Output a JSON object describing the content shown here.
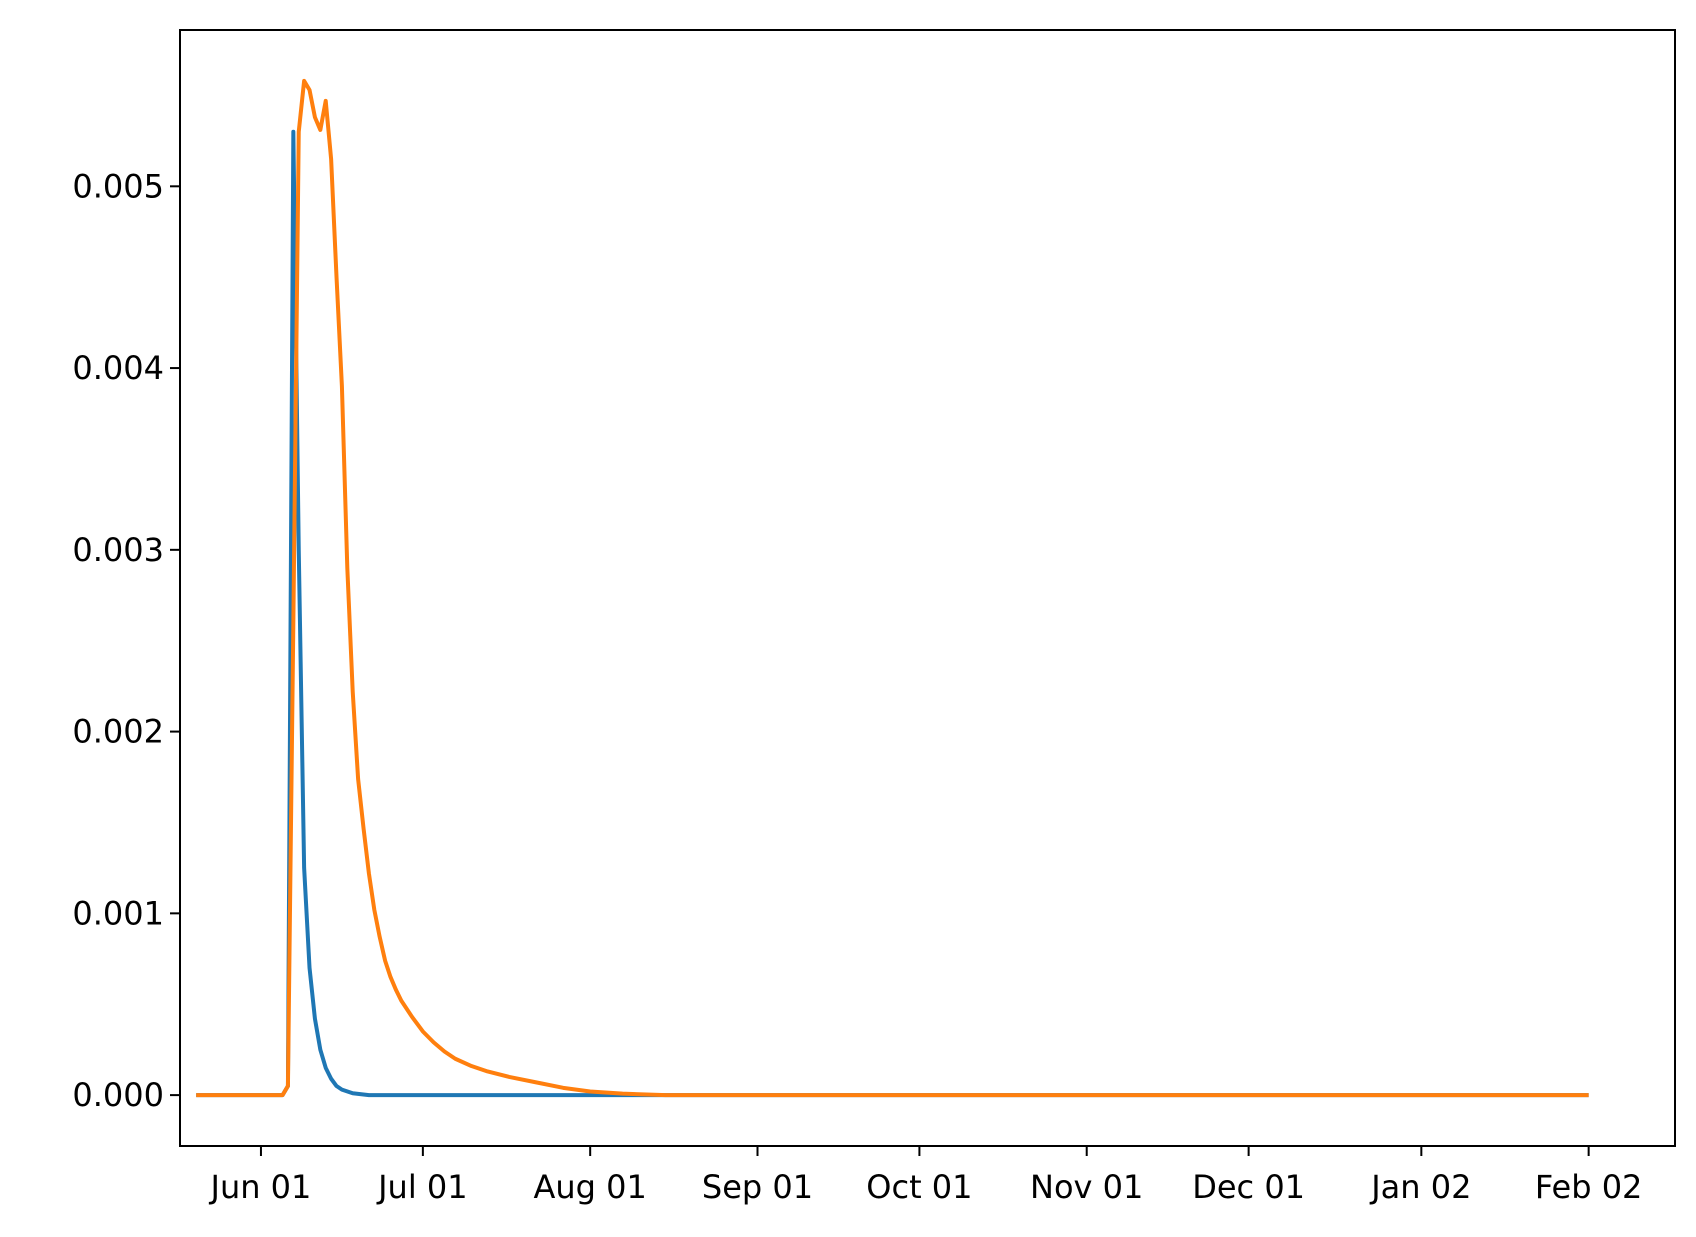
{
  "chart_data": {
    "type": "line",
    "title": "",
    "xlabel": "",
    "ylabel": "",
    "x_axis_type": "date",
    "xlim": [
      "2023-05-17",
      "2024-02-18"
    ],
    "ylim": [
      -0.00028,
      0.00586
    ],
    "grid": false,
    "legend": null,
    "x_ticks": [
      {
        "date": "2023-06-01",
        "label": "Jun 01"
      },
      {
        "date": "2023-07-01",
        "label": "Jul 01"
      },
      {
        "date": "2023-08-01",
        "label": "Aug 01"
      },
      {
        "date": "2023-09-01",
        "label": "Sep 01"
      },
      {
        "date": "2023-10-01",
        "label": "Oct 01"
      },
      {
        "date": "2023-11-01",
        "label": "Nov 01"
      },
      {
        "date": "2023-12-01",
        "label": "Dec 01"
      },
      {
        "date": "2024-01-02",
        "label": "Jan 02"
      },
      {
        "date": "2024-02-02",
        "label": "Feb 02"
      }
    ],
    "y_ticks": [
      {
        "value": 0.0,
        "label": "0.000"
      },
      {
        "value": 0.001,
        "label": "0.001"
      },
      {
        "value": 0.002,
        "label": "0.002"
      },
      {
        "value": 0.003,
        "label": "0.003"
      },
      {
        "value": 0.004,
        "label": "0.004"
      },
      {
        "value": 0.005,
        "label": "0.005"
      }
    ],
    "series": [
      {
        "color": "#1f77b4",
        "points": [
          [
            "2023-05-20",
            0.0
          ],
          [
            "2023-06-05",
            0.0
          ],
          [
            "2023-06-06",
            5e-05
          ],
          [
            "2023-06-07",
            0.0053
          ],
          [
            "2023-06-08",
            0.003
          ],
          [
            "2023-06-09",
            0.00125
          ],
          [
            "2023-06-10",
            0.0007
          ],
          [
            "2023-06-11",
            0.00042
          ],
          [
            "2023-06-12",
            0.00025
          ],
          [
            "2023-06-13",
            0.00015
          ],
          [
            "2023-06-14",
            9e-05
          ],
          [
            "2023-06-15",
            5e-05
          ],
          [
            "2023-06-16",
            3e-05
          ],
          [
            "2023-06-18",
            1e-05
          ],
          [
            "2023-06-21",
            0.0
          ],
          [
            "2024-02-02",
            0.0
          ]
        ]
      },
      {
        "color": "#ff7f0e",
        "points": [
          [
            "2023-05-20",
            0.0
          ],
          [
            "2023-06-05",
            0.0
          ],
          [
            "2023-06-06",
            5e-05
          ],
          [
            "2023-06-07",
            0.0026
          ],
          [
            "2023-06-08",
            0.0053
          ],
          [
            "2023-06-09",
            0.00558
          ],
          [
            "2023-06-10",
            0.00553
          ],
          [
            "2023-06-11",
            0.00538
          ],
          [
            "2023-06-12",
            0.00531
          ],
          [
            "2023-06-13",
            0.00547
          ],
          [
            "2023-06-14",
            0.00515
          ],
          [
            "2023-06-15",
            0.0045
          ],
          [
            "2023-06-16",
            0.0039
          ],
          [
            "2023-06-17",
            0.0029
          ],
          [
            "2023-06-18",
            0.00222
          ],
          [
            "2023-06-19",
            0.00174
          ],
          [
            "2023-06-20",
            0.00147
          ],
          [
            "2023-06-21",
            0.00122
          ],
          [
            "2023-06-22",
            0.00102
          ],
          [
            "2023-06-23",
            0.00087
          ],
          [
            "2023-06-24",
            0.00074
          ],
          [
            "2023-06-25",
            0.00065
          ],
          [
            "2023-06-26",
            0.00058
          ],
          [
            "2023-06-27",
            0.00052
          ],
          [
            "2023-06-29",
            0.00043
          ],
          [
            "2023-07-01",
            0.00035
          ],
          [
            "2023-07-03",
            0.00029
          ],
          [
            "2023-07-05",
            0.00024
          ],
          [
            "2023-07-07",
            0.0002
          ],
          [
            "2023-07-10",
            0.00016
          ],
          [
            "2023-07-13",
            0.00013
          ],
          [
            "2023-07-17",
            0.0001
          ],
          [
            "2023-07-22",
            7e-05
          ],
          [
            "2023-07-27",
            4e-05
          ],
          [
            "2023-08-01",
            2e-05
          ],
          [
            "2023-08-07",
            8e-06
          ],
          [
            "2023-08-15",
            0.0
          ],
          [
            "2024-02-02",
            0.0
          ]
        ]
      }
    ]
  }
}
